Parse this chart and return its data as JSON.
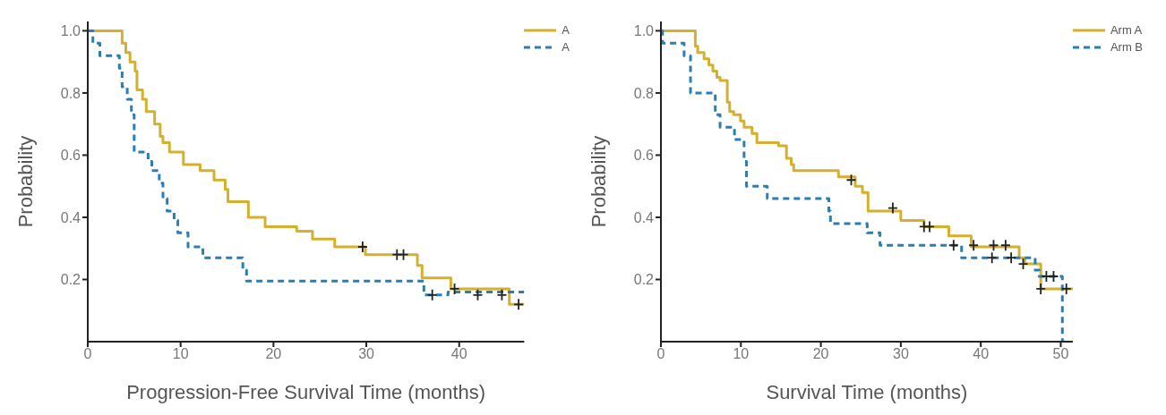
{
  "chart_data": [
    {
      "type": "step",
      "xlabel": "Progression-Free Survival Time (months)",
      "ylabel": "Probability",
      "legend": "top right",
      "xlim": [
        0,
        47
      ],
      "xticks": [
        0,
        10,
        20,
        30,
        40
      ],
      "ylim": [
        0,
        1.03
      ],
      "yticks": [
        {
          "value": 0.2,
          "label": "0.2"
        },
        {
          "value": 0.4,
          "label": "0.4"
        },
        {
          "value": 0.6,
          "label": "0.6"
        },
        {
          "value": 0.8,
          "label": "0.8"
        },
        {
          "value": 1,
          "label": "1.0"
        }
      ],
      "grid": false,
      "series": [
        {
          "name": "A",
          "color": "#d4b02c",
          "line_style": "solid",
          "x": [
            0,
            3.7,
            4.1,
            4.55,
            5.1,
            5.3,
            5.9,
            6.3,
            7.2,
            7.8,
            8.1,
            8.8,
            10.3,
            12.1,
            13.6,
            14.8,
            15.1,
            17.3,
            19.1,
            22.5,
            24.2,
            26.6,
            29.9,
            35.5,
            36.0,
            39.1,
            45.4,
            47
          ],
          "values": [
            1,
            0.96,
            0.93,
            0.9,
            0.87,
            0.81,
            0.78,
            0.74,
            0.7,
            0.66,
            0.64,
            0.61,
            0.57,
            0.55,
            0.52,
            0.49,
            0.45,
            0.4,
            0.37,
            0.355,
            0.33,
            0.305,
            0.28,
            0.245,
            0.205,
            0.17,
            0.12,
            0.12
          ]
        },
        {
          "name": "A",
          "color": "#2a7fb0",
          "line_style": "dashed",
          "x": [
            0,
            0.55,
            1.3,
            3.4,
            3.7,
            4.25,
            4.7,
            5.0,
            6.5,
            6.9,
            7.7,
            8.1,
            8.55,
            9.3,
            9.7,
            10.8,
            12.4,
            16.7,
            17.1,
            36.2,
            38.8,
            47
          ],
          "values": [
            1,
            0.96,
            0.92,
            0.88,
            0.82,
            0.78,
            0.73,
            0.61,
            0.58,
            0.55,
            0.51,
            0.46,
            0.42,
            0.39,
            0.35,
            0.305,
            0.27,
            0.23,
            0.195,
            0.15,
            0.16,
            0.16
          ]
        },
        {
          "type": "scatter",
          "color": "#222222",
          "marker": "cross",
          "x": [
            29.6,
            33.3,
            34.0,
            37.1,
            39.5,
            42.0,
            44.6,
            46.4
          ],
          "values": [
            0.305,
            0.28,
            0.28,
            0.15,
            0.17,
            0.15,
            0.15,
            0.12
          ]
        }
      ]
    },
    {
      "type": "step",
      "xlabel": "Survival Time (months)",
      "ylabel": "Probability",
      "legend": "top right",
      "xlim": [
        0,
        51.5
      ],
      "xticks": [
        0,
        10,
        20,
        30,
        40,
        50
      ],
      "ylim": [
        0,
        1.03
      ],
      "yticks": [
        {
          "value": 0.2,
          "label": "0.2"
        },
        {
          "value": 0.4,
          "label": "0.4"
        },
        {
          "value": 0.6,
          "label": "0.6"
        },
        {
          "value": 0.8,
          "label": "0.8"
        },
        {
          "value": 1,
          "label": "1.0"
        }
      ],
      "grid": false,
      "series": [
        {
          "name": "Arm A",
          "color": "#d4b02c",
          "line_style": "solid",
          "x": [
            0,
            4.3,
            4.6,
            5.4,
            6.0,
            6.5,
            7.0,
            7.4,
            8.3,
            8.6,
            9.1,
            9.95,
            10.4,
            11.4,
            12.0,
            14.7,
            15.7,
            16.3,
            16.6,
            22.2,
            24.3,
            25.2,
            25.9,
            30.0,
            32.9,
            36.0,
            38.8,
            44.8,
            45.5,
            47.5,
            51.5
          ],
          "values": [
            1,
            0.95,
            0.93,
            0.91,
            0.89,
            0.87,
            0.85,
            0.84,
            0.77,
            0.74,
            0.73,
            0.71,
            0.69,
            0.67,
            0.64,
            0.63,
            0.59,
            0.57,
            0.55,
            0.53,
            0.5,
            0.48,
            0.42,
            0.39,
            0.37,
            0.34,
            0.305,
            0.27,
            0.25,
            0.17,
            0.17
          ]
        },
        {
          "name": "Arm B",
          "color": "#2a7fb0",
          "line_style": "dashed",
          "x": [
            0,
            0.2,
            2.9,
            3.7,
            6.8,
            7.4,
            9.2,
            10.4,
            10.7,
            13.3,
            21.0,
            21.2,
            25.8,
            27.4,
            37.6,
            46.8,
            47.3,
            50.2,
            50.5
          ],
          "values": [
            1,
            0.96,
            0.92,
            0.8,
            0.73,
            0.69,
            0.65,
            0.58,
            0.5,
            0.46,
            0.42,
            0.38,
            0.35,
            0.31,
            0.27,
            0.23,
            0.21,
            0,
            0
          ]
        },
        {
          "type": "scatter",
          "color": "#222222",
          "marker": "cross",
          "x": [
            23.8,
            29.0,
            32.9,
            33.6,
            36.6,
            39.1,
            41.4,
            41.6,
            43.1,
            43.8,
            45.3,
            47.5,
            48.2,
            49.1,
            50.7
          ],
          "values": [
            0.52,
            0.43,
            0.37,
            0.37,
            0.31,
            0.31,
            0.27,
            0.31,
            0.31,
            0.27,
            0.25,
            0.17,
            0.21,
            0.21,
            0.17
          ]
        }
      ]
    }
  ]
}
